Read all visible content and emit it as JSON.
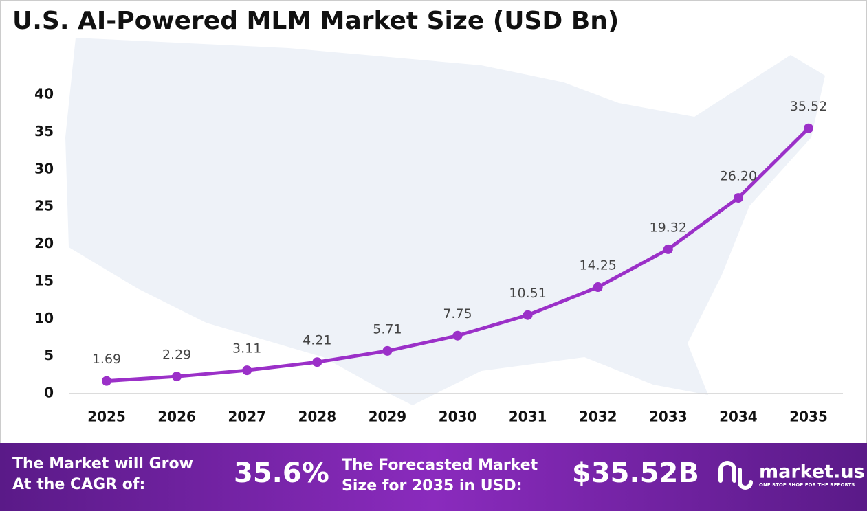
{
  "chart_data": {
    "type": "line",
    "title": "U.S. AI-Powered MLM Market Size (USD Bn)",
    "categories": [
      "2025",
      "2026",
      "2027",
      "2028",
      "2029",
      "2030",
      "2031",
      "2032",
      "2033",
      "2034",
      "2035"
    ],
    "values": [
      1.69,
      2.29,
      3.11,
      4.21,
      5.71,
      7.75,
      10.51,
      14.25,
      19.32,
      26.2,
      35.52
    ],
    "value_labels": [
      "1.69",
      "2.29",
      "3.11",
      "4.21",
      "5.71",
      "7.75",
      "10.51",
      "14.25",
      "19.32",
      "26.20",
      "35.52"
    ],
    "color": "#9b30c8",
    "ylim": [
      0,
      40
    ],
    "yticks": [
      0,
      5,
      10,
      15,
      20,
      25,
      30,
      35,
      40
    ],
    "grid": false
  },
  "footer": {
    "cagr_text": [
      "The Market will Grow",
      "At the CAGR of:"
    ],
    "cagr_value": "35.6%",
    "forecast_text": [
      "The Forecasted Market",
      "Size for 2035 in USD:"
    ],
    "forecast_value": "$35.52B",
    "brand": "market.us",
    "tagline": "ONE STOP SHOP FOR THE REPORTS"
  }
}
